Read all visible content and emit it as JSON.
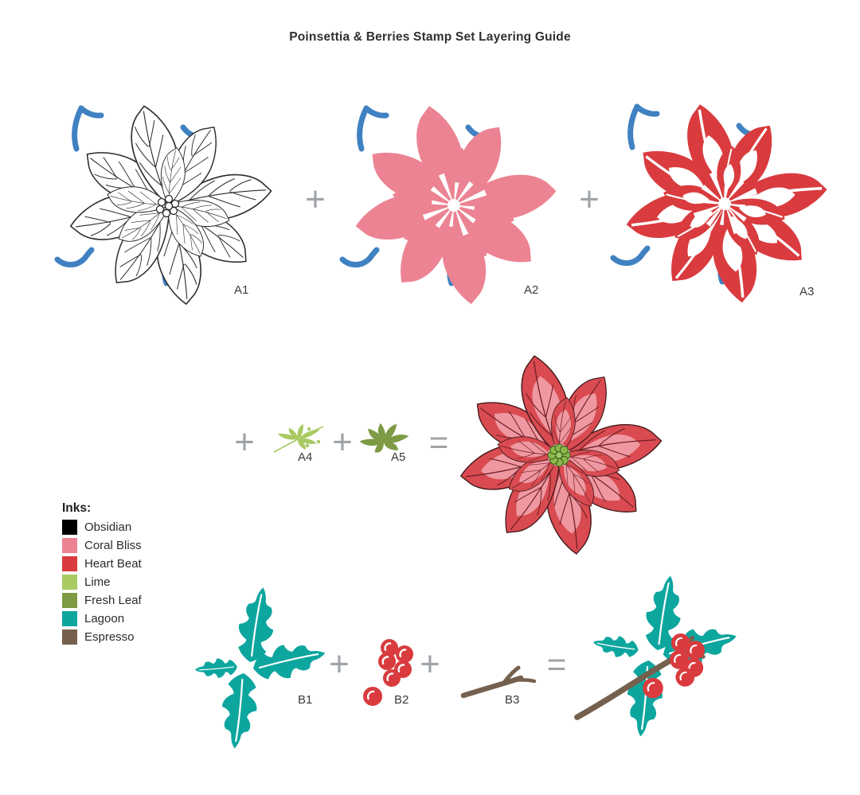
{
  "title": "Poinsettia & Berries Stamp Set Layering Guide",
  "operators": {
    "plus": "+",
    "equals": "="
  },
  "labels": {
    "a1": "A1",
    "a2": "A2",
    "a3": "A3",
    "a4": "A4",
    "a5": "A5",
    "b1": "B1",
    "b2": "B2",
    "b3": "B3"
  },
  "legend": {
    "heading": "Inks:",
    "items": [
      {
        "name": "Obsidian",
        "color": "#000000"
      },
      {
        "name": "Coral Bliss",
        "color": "#ec8393"
      },
      {
        "name": "Heart Beat",
        "color": "#d93b3e"
      },
      {
        "name": "Lime",
        "color": "#a9ca63"
      },
      {
        "name": "Fresh Leaf",
        "color": "#7d9a44"
      },
      {
        "name": "Lagoon",
        "color": "#0ca69f"
      },
      {
        "name": "Espresso",
        "color": "#75604e"
      }
    ]
  },
  "art_colors": {
    "outline_ink": "#2b2b2b",
    "blue_registration_mark": "#4081c2",
    "operator_gray": "#9fa3a7",
    "final_petal_shadow": "#d94b51",
    "final_petal_highlight": "#ef98a1",
    "final_center_green": "#8cb84a"
  }
}
